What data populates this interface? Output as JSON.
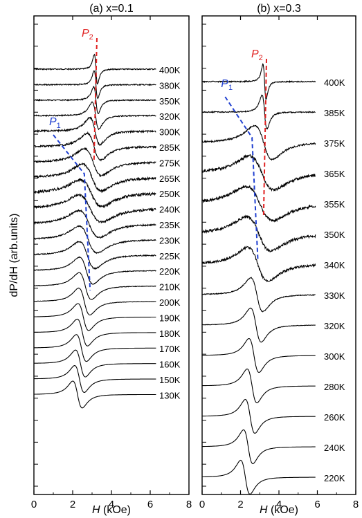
{
  "figure": {
    "ylabel": "dP/dH (arb.units)",
    "xlabel_symbol": "H",
    "xlabel_unit": " (kOe)"
  },
  "chart_data": [
    {
      "id": "a",
      "type": "line",
      "title": "(a) x=0.1",
      "xlim": [
        0,
        8
      ],
      "xticks": [
        0,
        2,
        4,
        6,
        8
      ],
      "xlabel": "H (kOe)",
      "ylabel": "dP/dH (arb.units)",
      "ytick_count": 22,
      "grid": false,
      "series_labels": [
        "400K",
        "380K",
        "350K",
        "320K",
        "300K",
        "285K",
        "275K",
        "265K",
        "250K",
        "240K",
        "235K",
        "230K",
        "225K",
        "220K",
        "210K",
        "200K",
        "190K",
        "180K",
        "170K",
        "160K",
        "150K",
        "130K"
      ],
      "curve_params": [
        {
          "label": "400K",
          "x0": 3.2,
          "w": 0.14,
          "amp": 50,
          "x_end": 6.3,
          "noise": 1
        },
        {
          "label": "380K",
          "x0": 3.2,
          "w": 0.16,
          "amp": 48,
          "x_end": 6.3,
          "noise": 1
        },
        {
          "label": "350K",
          "x0": 3.2,
          "w": 0.2,
          "amp": 46,
          "x_end": 6.3,
          "noise": 1
        },
        {
          "label": "320K",
          "x0": 3.18,
          "w": 0.3,
          "amp": 46,
          "x_end": 6.3,
          "noise": 1
        },
        {
          "label": "300K",
          "x0": 3.15,
          "w": 0.45,
          "amp": 46,
          "x_end": 6.3,
          "noise": 1.5
        },
        {
          "label": "285K",
          "x0": 3.1,
          "w": 0.6,
          "amp": 46,
          "x_end": 6.3,
          "noise": 1.5
        },
        {
          "label": "275K",
          "x0": 3.05,
          "w": 0.75,
          "amp": 46,
          "x_end": 6.3,
          "noise": 1.5
        },
        {
          "label": "265K",
          "x0": 3.0,
          "w": 0.85,
          "amp": 46,
          "x_end": 6.3,
          "noise": 2
        },
        {
          "label": "250K",
          "x0": 2.95,
          "w": 0.95,
          "amp": 46,
          "x_end": 6.3,
          "noise": 2.5
        },
        {
          "label": "240K",
          "x0": 2.9,
          "w": 1.0,
          "amp": 46,
          "x_end": 6.3,
          "noise": 2
        },
        {
          "label": "235K",
          "x0": 2.85,
          "w": 0.9,
          "amp": 46,
          "x_end": 6.3,
          "noise": 1.5
        },
        {
          "label": "230K",
          "x0": 2.8,
          "w": 0.8,
          "amp": 46,
          "x_end": 6.3,
          "noise": 1
        },
        {
          "label": "225K",
          "x0": 2.75,
          "w": 0.7,
          "amp": 46,
          "x_end": 6.3,
          "noise": 1
        },
        {
          "label": "220K",
          "x0": 2.7,
          "w": 0.6,
          "amp": 46,
          "x_end": 6.3,
          "noise": 0.6
        },
        {
          "label": "210K",
          "x0": 2.65,
          "w": 0.55,
          "amp": 46,
          "x_end": 6.3,
          "noise": 0.4
        },
        {
          "label": "200K",
          "x0": 2.6,
          "w": 0.5,
          "amp": 46,
          "x_end": 6.3,
          "noise": 0.3
        },
        {
          "label": "190K",
          "x0": 2.55,
          "w": 0.48,
          "amp": 46,
          "x_end": 6.3,
          "noise": 0
        },
        {
          "label": "180K",
          "x0": 2.5,
          "w": 0.46,
          "amp": 46,
          "x_end": 6.3,
          "noise": 0
        },
        {
          "label": "170K",
          "x0": 2.45,
          "w": 0.45,
          "amp": 46,
          "x_end": 6.3,
          "noise": 0
        },
        {
          "label": "160K",
          "x0": 2.4,
          "w": 0.44,
          "amp": 46,
          "x_end": 6.3,
          "noise": 0
        },
        {
          "label": "150K",
          "x0": 2.35,
          "w": 0.43,
          "amp": 46,
          "x_end": 6.3,
          "noise": 0
        },
        {
          "label": "130K",
          "x0": 2.25,
          "w": 0.42,
          "amp": 46,
          "x_end": 6.3,
          "noise": 0
        }
      ],
      "annotations": [
        {
          "sym": "P",
          "sub": "1",
          "color": "#1f3fd0",
          "dashed_path_x": [
            1.0,
            2.6,
            2.7,
            2.8,
            2.9
          ]
        },
        {
          "sym": "P",
          "sub": "2",
          "color": "#e02020",
          "dashed_path_x": [
            3.25,
            3.2,
            3.15,
            3.1
          ]
        }
      ]
    },
    {
      "id": "b",
      "type": "line",
      "title": "(b) x=0.3",
      "xlim": [
        0,
        8
      ],
      "xticks": [
        0,
        2,
        4,
        6,
        8
      ],
      "xlabel": "H (kOe)",
      "ylabel": "dP/dH (arb.units)",
      "ytick_count": 22,
      "grid": false,
      "series_labels": [
        "400K",
        "385K",
        "375K",
        "365K",
        "355K",
        "350K",
        "340K",
        "330K",
        "320K",
        "300K",
        "280K",
        "260K",
        "240K",
        "220K"
      ],
      "curve_params": [
        {
          "label": "400K",
          "x0": 3.25,
          "w": 0.14,
          "amp": 60,
          "x_end": 5.9,
          "noise": 1
        },
        {
          "label": "385K",
          "x0": 3.25,
          "w": 0.22,
          "amp": 58,
          "x_end": 5.9,
          "noise": 1
        },
        {
          "label": "375K",
          "x0": 3.2,
          "w": 0.8,
          "amp": 58,
          "x_end": 5.9,
          "noise": 1.5
        },
        {
          "label": "365K",
          "x0": 3.1,
          "w": 1.1,
          "amp": 58,
          "x_end": 5.9,
          "noise": 2.5
        },
        {
          "label": "355K",
          "x0": 3.0,
          "w": 1.2,
          "amp": 58,
          "x_end": 5.9,
          "noise": 2.5
        },
        {
          "label": "350K",
          "x0": 2.95,
          "w": 1.1,
          "amp": 58,
          "x_end": 5.9,
          "noise": 2.5
        },
        {
          "label": "340K",
          "x0": 2.9,
          "w": 0.9,
          "amp": 58,
          "x_end": 5.9,
          "noise": 2
        },
        {
          "label": "330K",
          "x0": 2.85,
          "w": 0.55,
          "amp": 58,
          "x_end": 5.9,
          "noise": 0.8
        },
        {
          "label": "320K",
          "x0": 2.8,
          "w": 0.48,
          "amp": 58,
          "x_end": 5.9,
          "noise": 0.4
        },
        {
          "label": "300K",
          "x0": 2.7,
          "w": 0.45,
          "amp": 58,
          "x_end": 5.9,
          "noise": 0
        },
        {
          "label": "280K",
          "x0": 2.6,
          "w": 0.44,
          "amp": 58,
          "x_end": 5.9,
          "noise": 0
        },
        {
          "label": "260K",
          "x0": 2.5,
          "w": 0.43,
          "amp": 58,
          "x_end": 5.9,
          "noise": 0
        },
        {
          "label": "240K",
          "x0": 2.4,
          "w": 0.42,
          "amp": 58,
          "x_end": 5.9,
          "noise": 0
        },
        {
          "label": "220K",
          "x0": 2.25,
          "w": 0.42,
          "amp": 58,
          "x_end": 5.9,
          "noise": 0
        }
      ],
      "annotations": [
        {
          "sym": "P",
          "sub": "1",
          "color": "#1f3fd0",
          "dashed_path_x": [
            1.2,
            2.6,
            2.7,
            2.8,
            2.9
          ]
        },
        {
          "sym": "P",
          "sub": "2",
          "color": "#e02020",
          "dashed_path_x": [
            3.35,
            3.3,
            3.25,
            3.2
          ]
        }
      ]
    }
  ]
}
